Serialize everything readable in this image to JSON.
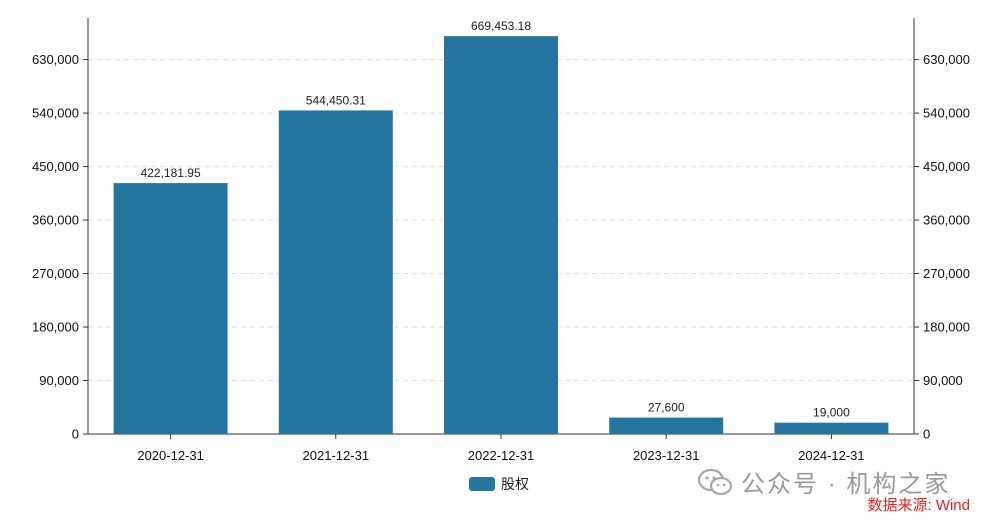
{
  "chart_data": {
    "type": "bar",
    "categories": [
      "2020-12-31",
      "2021-12-31",
      "2022-12-31",
      "2023-12-31",
      "2024-12-31"
    ],
    "series": [
      {
        "name": "股权",
        "values": [
          422181.95,
          544450.31,
          669453.18,
          27600,
          19000
        ]
      }
    ],
    "data_labels": [
      "422,181.95",
      "544,450.31",
      "669,453.18",
      "27,600",
      "19,000"
    ],
    "y_ticks": [
      0,
      90000,
      180000,
      270000,
      360000,
      450000,
      540000,
      630000
    ],
    "y_tick_labels": [
      "0",
      "90,000",
      "180,000",
      "270,000",
      "360,000",
      "450,000",
      "540,000",
      "630,000"
    ],
    "ylim": [
      0,
      700000
    ],
    "grid": true,
    "legend_position": "bottom-center",
    "bar_color": "#2575a1"
  },
  "legend": {
    "label": "股权"
  },
  "watermark": {
    "text": "公众号 · 机构之家",
    "icon": "wechat-icon"
  },
  "source": {
    "text": "数据来源: Wind",
    "color": "#e8201b"
  }
}
